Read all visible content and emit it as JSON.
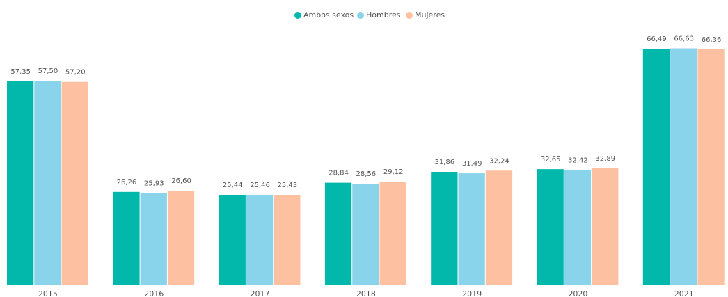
{
  "chart_data": {
    "type": "bar",
    "categories": [
      "2015",
      "2016",
      "2017",
      "2018",
      "2019",
      "2020",
      "2021"
    ],
    "series": [
      {
        "name": "Ambos sexos",
        "color": "#01b8aa",
        "values": [
          57.35,
          26.26,
          25.44,
          28.84,
          31.86,
          32.65,
          66.49
        ],
        "value_labels": [
          "57,35",
          "26,26",
          "25,44",
          "28,84",
          "31,86",
          "32,65",
          "66,49"
        ]
      },
      {
        "name": "Hombres",
        "color": "#8ad4eb",
        "values": [
          57.5,
          25.93,
          25.46,
          28.56,
          31.49,
          32.42,
          66.63
        ],
        "value_labels": [
          "57,50",
          "25,93",
          "25,46",
          "28,56",
          "31,49",
          "32,42",
          "66,63"
        ]
      },
      {
        "name": "Mujeres",
        "color": "#fdc0a0",
        "values": [
          57.2,
          26.6,
          25.43,
          29.12,
          32.24,
          32.89,
          66.36
        ],
        "value_labels": [
          "57,20",
          "26,60",
          "25,43",
          "29,12",
          "32,24",
          "32,89",
          "66,36"
        ]
      }
    ],
    "ylim": [
      0,
      80
    ],
    "legend": "top"
  }
}
